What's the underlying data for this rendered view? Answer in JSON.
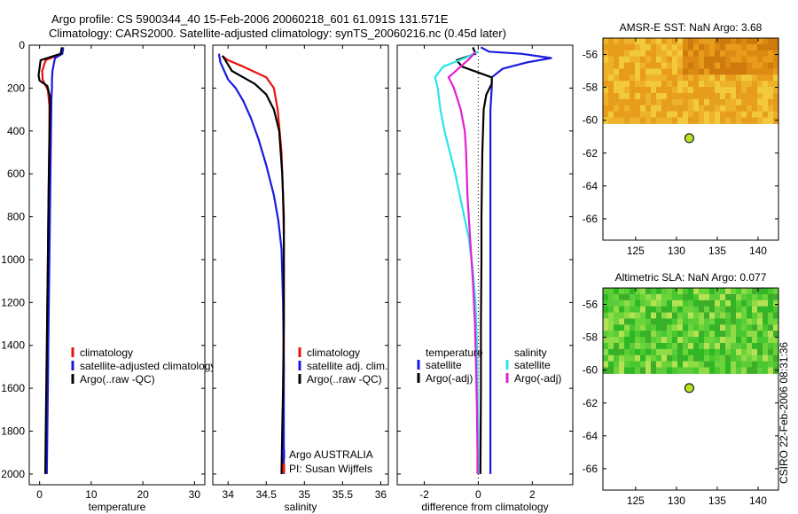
{
  "title_line1": "Argo profile: CS 5900344_40 15-Feb-2006 20060218_601 61.091S 131.571E",
  "title_line2": "Climatology: CARS2000. Satellite-adjusted climatology: synTS_20060216.nc (0.45d later)",
  "side_stamp": "CSIRO 22-Feb-2006 08:31:36",
  "colors": {
    "red": "#e8120d",
    "blue": "#1a1ae0",
    "black": "#000000",
    "cyan": "#27e6ec",
    "magenta": "#e21fd2",
    "sst_warm": "#e39a14",
    "sla_green": "#35c52a",
    "float_marker": "#b6e32a"
  },
  "chart_data": [
    {
      "id": "temperature",
      "type": "line",
      "xlabel": "temperature",
      "ylabel": "",
      "xlim": [
        -2,
        32
      ],
      "ylim": [
        2050,
        0
      ],
      "y_inverted": true,
      "xticks": [
        0,
        10,
        20,
        30
      ],
      "yticks": [
        0,
        200,
        400,
        600,
        800,
        1000,
        1200,
        1400,
        1600,
        1800,
        2000
      ],
      "series": [
        {
          "name": "climatology",
          "color": "#e8120d",
          "points": [
            [
              4.5,
              10
            ],
            [
              4.2,
              40
            ],
            [
              1.2,
              70
            ],
            [
              0.5,
              120
            ],
            [
              0.6,
              160
            ],
            [
              1.6,
              210
            ],
            [
              1.9,
              280
            ],
            [
              1.9,
              400
            ],
            [
              1.8,
              600
            ],
            [
              1.7,
              800
            ],
            [
              1.6,
              1000
            ],
            [
              1.5,
              1200
            ],
            [
              1.5,
              1400
            ],
            [
              1.4,
              1600
            ],
            [
              1.3,
              1800
            ],
            [
              1.2,
              2000
            ]
          ]
        },
        {
          "name": "satellite-adjusted climatology",
          "color": "#1a1ae0",
          "points": [
            [
              4.6,
              10
            ],
            [
              4.4,
              40
            ],
            [
              3.0,
              60
            ],
            [
              2.8,
              80
            ],
            [
              2.5,
              120
            ],
            [
              2.4,
              160
            ],
            [
              2.4,
              200
            ],
            [
              2.3,
              250
            ],
            [
              2.2,
              400
            ],
            [
              2.1,
              600
            ],
            [
              2.0,
              800
            ],
            [
              1.9,
              1000
            ],
            [
              1.8,
              1200
            ],
            [
              1.7,
              1400
            ],
            [
              1.6,
              1600
            ],
            [
              1.5,
              1800
            ],
            [
              1.4,
              2000
            ]
          ]
        },
        {
          "name": "Argo(..raw -QC)",
          "color": "#000000",
          "points": [
            [
              4.3,
              10
            ],
            [
              4.1,
              40
            ],
            [
              0.2,
              70
            ],
            [
              -0.2,
              140
            ],
            [
              0.0,
              165
            ],
            [
              1.5,
              190
            ],
            [
              2.0,
              240
            ],
            [
              2.0,
              300
            ],
            [
              1.9,
              450
            ],
            [
              1.8,
              600
            ],
            [
              1.7,
              800
            ],
            [
              1.6,
              1000
            ],
            [
              1.5,
              1200
            ],
            [
              1.4,
              1400
            ],
            [
              1.3,
              1600
            ],
            [
              1.2,
              1800
            ],
            [
              1.1,
              2000
            ]
          ]
        }
      ],
      "legend": [
        {
          "label": "climatology",
          "color": "#e8120d"
        },
        {
          "label": "satellite-adjusted climatology",
          "color": "#1a1ae0"
        },
        {
          "label": "Argo(..raw -QC)",
          "color": "#000000"
        }
      ]
    },
    {
      "id": "salinity",
      "type": "line",
      "xlabel": "salinity",
      "ylabel": "",
      "xlim": [
        33.8,
        36.1
      ],
      "ylim": [
        2050,
        0
      ],
      "y_inverted": true,
      "xticks": [
        34,
        34.5,
        35,
        35.5,
        36
      ],
      "yticks": [
        0,
        200,
        400,
        600,
        800,
        1000,
        1200,
        1400,
        1600,
        1800,
        2000
      ],
      "series": [
        {
          "name": "climatology",
          "color": "#e8120d",
          "points": [
            [
              33.92,
              50
            ],
            [
              34.0,
              70
            ],
            [
              34.2,
              100
            ],
            [
              34.5,
              150
            ],
            [
              34.6,
              200
            ],
            [
              34.65,
              300
            ],
            [
              34.7,
              500
            ],
            [
              34.72,
              700
            ],
            [
              34.73,
              900
            ],
            [
              34.73,
              1200
            ],
            [
              34.73,
              1500
            ],
            [
              34.72,
              1800
            ],
            [
              34.71,
              2000
            ]
          ]
        },
        {
          "name": "satellite adj. clim.",
          "color": "#1a1ae0",
          "points": [
            [
              33.88,
              40
            ],
            [
              33.9,
              80
            ],
            [
              33.95,
              120
            ],
            [
              34.0,
              160
            ],
            [
              34.1,
              200
            ],
            [
              34.2,
              260
            ],
            [
              34.3,
              340
            ],
            [
              34.4,
              440
            ],
            [
              34.5,
              560
            ],
            [
              34.6,
              700
            ],
            [
              34.66,
              820
            ],
            [
              34.7,
              950
            ],
            [
              34.72,
              1200
            ],
            [
              34.73,
              1500
            ],
            [
              34.73,
              1800
            ],
            [
              34.73,
              2000
            ]
          ]
        },
        {
          "name": "Argo(..raw -QC)",
          "color": "#000000",
          "points": [
            [
              33.93,
              50
            ],
            [
              34.05,
              120
            ],
            [
              34.2,
              150
            ],
            [
              34.35,
              180
            ],
            [
              34.5,
              230
            ],
            [
              34.6,
              300
            ],
            [
              34.67,
              400
            ],
            [
              34.71,
              600
            ],
            [
              34.73,
              800
            ],
            [
              34.73,
              1000
            ],
            [
              34.73,
              1300
            ],
            [
              34.72,
              1600
            ],
            [
              34.71,
              1800
            ],
            [
              34.7,
              2000
            ]
          ]
        }
      ],
      "legend": [
        {
          "label": "climatology",
          "color": "#e8120d"
        },
        {
          "label": "satellite adj. clim.",
          "color": "#1a1ae0"
        },
        {
          "label": "Argo(..raw -QC)",
          "color": "#000000"
        }
      ],
      "annotations": [
        "Argo AUSTRALIA",
        "PI: Susan Wijffels"
      ]
    },
    {
      "id": "difference",
      "type": "line",
      "xlabel": "difference from climatology",
      "ylabel": "",
      "xlim": [
        -3,
        3.5
      ],
      "ylim": [
        2050,
        0
      ],
      "y_inverted": true,
      "xticks": [
        -2,
        0,
        2
      ],
      "yticks": [
        0,
        200,
        400,
        600,
        800,
        1000,
        1200,
        1400,
        1600,
        1800,
        2000
      ],
      "zero_line": true,
      "series": [
        {
          "name": "temperature satellite",
          "color": "#1a1ae0",
          "points": [
            [
              0.1,
              10
            ],
            [
              0.4,
              30
            ],
            [
              1.6,
              40
            ],
            [
              2.7,
              60
            ],
            [
              1.8,
              80
            ],
            [
              0.9,
              110
            ],
            [
              0.5,
              150
            ],
            [
              0.5,
              200
            ],
            [
              0.45,
              300
            ],
            [
              0.45,
              500
            ],
            [
              0.45,
              800
            ],
            [
              0.45,
              1000
            ],
            [
              0.45,
              1200
            ],
            [
              0.45,
              1500
            ],
            [
              0.45,
              1800
            ],
            [
              0.45,
              2000
            ]
          ]
        },
        {
          "name": "temperature Argo(-adj)",
          "color": "#000000",
          "points": [
            [
              -0.2,
              10
            ],
            [
              -0.1,
              40
            ],
            [
              -0.8,
              70
            ],
            [
              -0.6,
              100
            ],
            [
              0.5,
              150
            ],
            [
              0.5,
              180
            ],
            [
              0.3,
              230
            ],
            [
              0.2,
              300
            ],
            [
              0.15,
              500
            ],
            [
              0.12,
              800
            ],
            [
              0.12,
              1000
            ],
            [
              0.1,
              1300
            ],
            [
              0.1,
              1600
            ],
            [
              0.08,
              2000
            ]
          ]
        },
        {
          "name": "salinity satellite",
          "color": "#27e6ec",
          "points": [
            [
              0.0,
              30
            ],
            [
              -0.5,
              60
            ],
            [
              -1.3,
              100
            ],
            [
              -1.6,
              150
            ],
            [
              -1.5,
              200
            ],
            [
              -1.4,
              300
            ],
            [
              -1.25,
              400
            ],
            [
              -1.05,
              500
            ],
            [
              -0.85,
              600
            ],
            [
              -0.6,
              750
            ],
            [
              -0.35,
              900
            ],
            [
              -0.2,
              1050
            ],
            [
              -0.1,
              1200
            ],
            [
              -0.05,
              1400
            ],
            [
              -0.03,
              1600
            ],
            [
              0.0,
              1800
            ],
            [
              0.0,
              2000
            ]
          ]
        },
        {
          "name": "salinity Argo(-adj)",
          "color": "#e21fd2",
          "points": [
            [
              -0.1,
              30
            ],
            [
              -0.3,
              60
            ],
            [
              -1.1,
              150
            ],
            [
              -0.9,
              200
            ],
            [
              -0.65,
              300
            ],
            [
              -0.5,
              400
            ],
            [
              -0.45,
              500
            ],
            [
              -0.4,
              700
            ],
            [
              -0.3,
              900
            ],
            [
              -0.2,
              1100
            ],
            [
              -0.12,
              1300
            ],
            [
              -0.08,
              1500
            ],
            [
              -0.05,
              1700
            ],
            [
              -0.03,
              1900
            ],
            [
              -0.03,
              2000
            ]
          ]
        }
      ],
      "legend_headers": [
        "temperature",
        "salinity"
      ],
      "legend": [
        {
          "label": "satellite",
          "color": "#1a1ae0",
          "column": "temperature"
        },
        {
          "label": "Argo(-adj)",
          "color": "#000000",
          "column": "temperature"
        },
        {
          "label": "satellite",
          "color": "#27e6ec",
          "column": "salinity"
        },
        {
          "label": "Argo(-adj)",
          "color": "#e21fd2",
          "column": "salinity"
        }
      ]
    },
    {
      "id": "sst_map",
      "type": "heatmap",
      "title": "AMSR-E SST: NaN Argo: 3.68",
      "xlim": [
        121,
        142.5
      ],
      "ylim": [
        -67.3,
        -55
      ],
      "xticks": [
        125,
        130,
        135,
        140
      ],
      "yticks": [
        -56,
        -58,
        -60,
        -62,
        -64,
        -66
      ],
      "field_extent": {
        "lon": [
          121,
          142.5
        ],
        "lat": [
          -60.2,
          -55
        ]
      },
      "float_position": {
        "lon": 131.571,
        "lat": -61.091
      }
    },
    {
      "id": "sla_map",
      "type": "heatmap",
      "title": "Altimetric SLA: NaN Argo: 0.077",
      "xlim": [
        121,
        142.5
      ],
      "ylim": [
        -67.3,
        -55
      ],
      "xticks": [
        125,
        130,
        135,
        140
      ],
      "yticks": [
        -56,
        -58,
        -60,
        -62,
        -64,
        -66
      ],
      "field_extent": {
        "lon": [
          121,
          142.5
        ],
        "lat": [
          -60.2,
          -55
        ]
      },
      "float_position": {
        "lon": 131.571,
        "lat": -61.091
      }
    }
  ]
}
